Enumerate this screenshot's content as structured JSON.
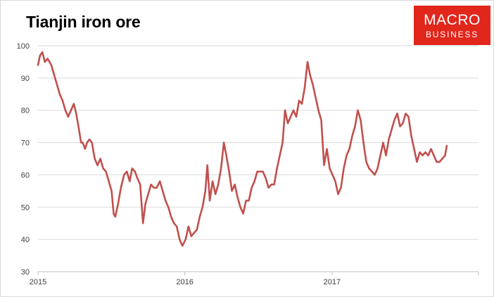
{
  "branding": {
    "logo_line1": "MACRO",
    "logo_line2": "BUSINESS",
    "logo_color": "#e1261c"
  },
  "chart_data": {
    "type": "line",
    "title": "Tianjin iron ore",
    "xlabel": "",
    "ylabel": "",
    "ylim": [
      30,
      100
    ],
    "y_ticks": [
      "100",
      "90",
      "80",
      "70",
      "60",
      "50",
      "40",
      "30"
    ],
    "x_ticks": [
      "2015",
      "2016",
      "2017"
    ],
    "xlim": [
      "2015-01-01",
      "2017-12-31"
    ],
    "grid": true,
    "legend": "none",
    "series_color": "#c0504d",
    "series": [
      {
        "points": [
          [
            "2015-01-01",
            94
          ],
          [
            "2015-01-06",
            97
          ],
          [
            "2015-01-12",
            98
          ],
          [
            "2015-01-18",
            95
          ],
          [
            "2015-01-25",
            96
          ],
          [
            "2015-02-03",
            94
          ],
          [
            "2015-02-10",
            91
          ],
          [
            "2015-02-17",
            88
          ],
          [
            "2015-02-24",
            85
          ],
          [
            "2015-03-03",
            83
          ],
          [
            "2015-03-10",
            80
          ],
          [
            "2015-03-17",
            78
          ],
          [
            "2015-03-24",
            80
          ],
          [
            "2015-03-31",
            82
          ],
          [
            "2015-04-06",
            79
          ],
          [
            "2015-04-13",
            74
          ],
          [
            "2015-04-18",
            70
          ],
          [
            "2015-04-22",
            70
          ],
          [
            "2015-04-28",
            68
          ],
          [
            "2015-05-03",
            70
          ],
          [
            "2015-05-09",
            71
          ],
          [
            "2015-05-15",
            70
          ],
          [
            "2015-05-22",
            65
          ],
          [
            "2015-05-29",
            63
          ],
          [
            "2015-06-05",
            65
          ],
          [
            "2015-06-12",
            62
          ],
          [
            "2015-06-19",
            61
          ],
          [
            "2015-06-26",
            58
          ],
          [
            "2015-07-03",
            55
          ],
          [
            "2015-07-08",
            48
          ],
          [
            "2015-07-12",
            47
          ],
          [
            "2015-07-19",
            51
          ],
          [
            "2015-07-26",
            56
          ],
          [
            "2015-08-03",
            60
          ],
          [
            "2015-08-10",
            61
          ],
          [
            "2015-08-17",
            58
          ],
          [
            "2015-08-23",
            62
          ],
          [
            "2015-08-30",
            61
          ],
          [
            "2015-09-05",
            59
          ],
          [
            "2015-09-12",
            57
          ],
          [
            "2015-09-19",
            45
          ],
          [
            "2015-09-25",
            51
          ],
          [
            "2015-10-02",
            54
          ],
          [
            "2015-10-09",
            57
          ],
          [
            "2015-10-16",
            56
          ],
          [
            "2015-10-23",
            56
          ],
          [
            "2015-10-31",
            58
          ],
          [
            "2015-11-07",
            55
          ],
          [
            "2015-11-14",
            52
          ],
          [
            "2015-11-21",
            50
          ],
          [
            "2015-11-28",
            47
          ],
          [
            "2015-12-05",
            45
          ],
          [
            "2015-12-12",
            44
          ],
          [
            "2015-12-19",
            40
          ],
          [
            "2015-12-26",
            38
          ],
          [
            "2016-01-03",
            40
          ],
          [
            "2016-01-10",
            44
          ],
          [
            "2016-01-17",
            41
          ],
          [
            "2016-01-24",
            42
          ],
          [
            "2016-01-31",
            43
          ],
          [
            "2016-02-07",
            47
          ],
          [
            "2016-02-14",
            50
          ],
          [
            "2016-02-21",
            55
          ],
          [
            "2016-02-26",
            63
          ],
          [
            "2016-03-03",
            52
          ],
          [
            "2016-03-10",
            58
          ],
          [
            "2016-03-17",
            54
          ],
          [
            "2016-03-24",
            57
          ],
          [
            "2016-03-31",
            62
          ],
          [
            "2016-04-07",
            70
          ],
          [
            "2016-04-13",
            66
          ],
          [
            "2016-04-20",
            61
          ],
          [
            "2016-04-27",
            55
          ],
          [
            "2016-05-04",
            57
          ],
          [
            "2016-05-11",
            53
          ],
          [
            "2016-05-18",
            50
          ],
          [
            "2016-05-25",
            48
          ],
          [
            "2016-06-01",
            52
          ],
          [
            "2016-06-08",
            52
          ],
          [
            "2016-06-15",
            56
          ],
          [
            "2016-06-22",
            58
          ],
          [
            "2016-06-29",
            61
          ],
          [
            "2016-07-06",
            61
          ],
          [
            "2016-07-13",
            61
          ],
          [
            "2016-07-20",
            59
          ],
          [
            "2016-07-27",
            56
          ],
          [
            "2016-08-03",
            57
          ],
          [
            "2016-08-10",
            57
          ],
          [
            "2016-08-17",
            62
          ],
          [
            "2016-08-24",
            66
          ],
          [
            "2016-08-31",
            70
          ],
          [
            "2016-09-06",
            80
          ],
          [
            "2016-09-13",
            76
          ],
          [
            "2016-09-20",
            78
          ],
          [
            "2016-09-27",
            80
          ],
          [
            "2016-10-04",
            78
          ],
          [
            "2016-10-11",
            83
          ],
          [
            "2016-10-18",
            82
          ],
          [
            "2016-10-25",
            87
          ],
          [
            "2016-11-01",
            95
          ],
          [
            "2016-11-07",
            91
          ],
          [
            "2016-11-14",
            88
          ],
          [
            "2016-11-21",
            84
          ],
          [
            "2016-11-28",
            80
          ],
          [
            "2016-12-05",
            77
          ],
          [
            "2016-12-12",
            63
          ],
          [
            "2016-12-19",
            68
          ],
          [
            "2016-12-26",
            62
          ],
          [
            "2017-01-02",
            60
          ],
          [
            "2017-01-09",
            58
          ],
          [
            "2017-01-16",
            54
          ],
          [
            "2017-01-23",
            56
          ],
          [
            "2017-01-30",
            62
          ],
          [
            "2017-02-06",
            66
          ],
          [
            "2017-02-13",
            68
          ],
          [
            "2017-02-20",
            72
          ],
          [
            "2017-02-27",
            75
          ],
          [
            "2017-03-06",
            80
          ],
          [
            "2017-03-13",
            77
          ],
          [
            "2017-03-20",
            70
          ],
          [
            "2017-03-27",
            64
          ],
          [
            "2017-04-03",
            62
          ],
          [
            "2017-04-10",
            61
          ],
          [
            "2017-04-17",
            60
          ],
          [
            "2017-04-24",
            62
          ],
          [
            "2017-05-01",
            66
          ],
          [
            "2017-05-08",
            70
          ],
          [
            "2017-05-15",
            66
          ],
          [
            "2017-05-22",
            71
          ],
          [
            "2017-05-29",
            74
          ],
          [
            "2017-06-05",
            77
          ],
          [
            "2017-06-12",
            79
          ],
          [
            "2017-06-19",
            75
          ],
          [
            "2017-06-26",
            76
          ],
          [
            "2017-07-03",
            79
          ],
          [
            "2017-07-10",
            78
          ],
          [
            "2017-07-17",
            72
          ],
          [
            "2017-07-24",
            68
          ],
          [
            "2017-07-31",
            64
          ],
          [
            "2017-08-07",
            67
          ],
          [
            "2017-08-14",
            66
          ],
          [
            "2017-08-21",
            67
          ],
          [
            "2017-08-28",
            66
          ],
          [
            "2017-09-04",
            68
          ],
          [
            "2017-09-11",
            66
          ],
          [
            "2017-09-18",
            64
          ],
          [
            "2017-09-25",
            64
          ],
          [
            "2017-10-02",
            65
          ],
          [
            "2017-10-09",
            66
          ],
          [
            "2017-10-13",
            69
          ]
        ]
      }
    ]
  }
}
